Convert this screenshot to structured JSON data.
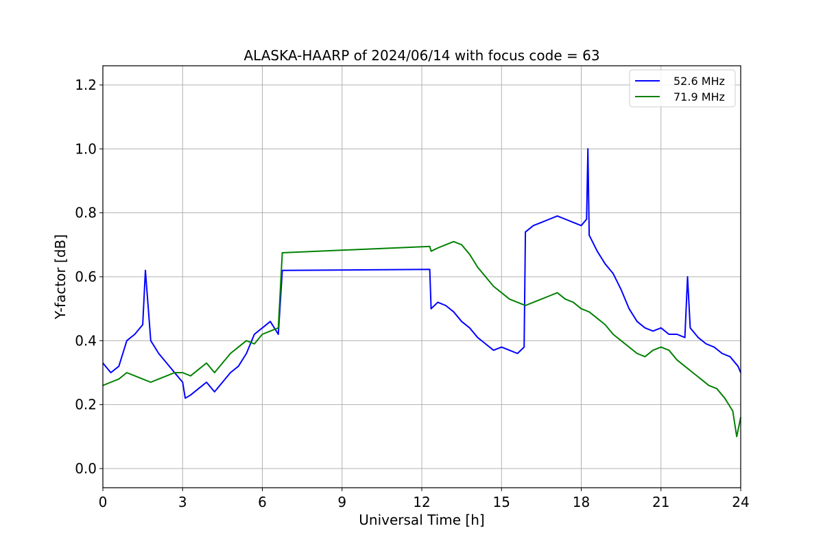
{
  "chart_data": {
    "type": "line",
    "title": "ALASKA-HAARP of 2024/06/14 with focus code = 63",
    "xlabel": "Universal Time [h]",
    "ylabel": "Y-factor [dB]",
    "xlim": [
      0,
      24
    ],
    "ylim": [
      -0.06,
      1.26
    ],
    "xticks": [
      0,
      3,
      6,
      9,
      12,
      15,
      18,
      21,
      24
    ],
    "xtick_labels": [
      "0",
      "3",
      "6",
      "9",
      "12",
      "15",
      "18",
      "21",
      "24"
    ],
    "yticks": [
      0.0,
      0.2,
      0.4,
      0.6,
      0.8,
      1.0,
      1.2
    ],
    "ytick_labels": [
      "0.0",
      "0.2",
      "0.4",
      "0.6",
      "0.8",
      "1.0",
      "1.2"
    ],
    "grid": true,
    "legend_position": "top-right",
    "series": [
      {
        "name": "52.6 MHz",
        "color": "#0000ff",
        "x": [
          0.0,
          0.3,
          0.6,
          0.9,
          1.2,
          1.5,
          1.6,
          1.8,
          2.1,
          2.4,
          2.7,
          3.0,
          3.1,
          3.3,
          3.6,
          3.9,
          4.2,
          4.5,
          4.8,
          5.1,
          5.4,
          5.7,
          6.0,
          6.3,
          6.6,
          6.75,
          12.3,
          12.35,
          12.6,
          12.9,
          13.2,
          13.5,
          13.8,
          14.1,
          14.4,
          14.7,
          15.0,
          15.3,
          15.6,
          15.85,
          15.9,
          16.2,
          16.5,
          16.8,
          17.1,
          17.4,
          17.7,
          18.0,
          18.2,
          18.25,
          18.3,
          18.6,
          18.9,
          19.2,
          19.5,
          19.8,
          20.1,
          20.4,
          20.7,
          21.0,
          21.3,
          21.6,
          21.9,
          22.0,
          22.1,
          22.4,
          22.7,
          23.0,
          23.3,
          23.6,
          23.9,
          24.0
        ],
        "y": [
          0.33,
          0.3,
          0.32,
          0.4,
          0.42,
          0.45,
          0.62,
          0.4,
          0.36,
          0.33,
          0.3,
          0.27,
          0.22,
          0.23,
          0.25,
          0.27,
          0.24,
          0.27,
          0.3,
          0.32,
          0.36,
          0.42,
          0.44,
          0.46,
          0.42,
          0.62,
          0.623,
          0.5,
          0.52,
          0.51,
          0.49,
          0.46,
          0.44,
          0.41,
          0.39,
          0.37,
          0.38,
          0.37,
          0.36,
          0.38,
          0.74,
          0.76,
          0.77,
          0.78,
          0.79,
          0.78,
          0.77,
          0.76,
          0.78,
          1.0,
          0.73,
          0.68,
          0.64,
          0.61,
          0.56,
          0.5,
          0.46,
          0.44,
          0.43,
          0.44,
          0.42,
          0.42,
          0.41,
          0.6,
          0.44,
          0.41,
          0.39,
          0.38,
          0.36,
          0.35,
          0.32,
          0.3
        ]
      },
      {
        "name": "71.9 MHz",
        "color": "#008000",
        "x": [
          0.0,
          0.3,
          0.6,
          0.9,
          1.2,
          1.5,
          1.8,
          2.1,
          2.4,
          2.7,
          3.0,
          3.3,
          3.6,
          3.9,
          4.2,
          4.5,
          4.8,
          5.1,
          5.4,
          5.7,
          6.0,
          6.3,
          6.6,
          6.75,
          12.3,
          12.35,
          12.6,
          12.9,
          13.2,
          13.5,
          13.8,
          14.1,
          14.4,
          14.7,
          15.0,
          15.3,
          15.6,
          15.9,
          16.2,
          16.5,
          16.8,
          17.1,
          17.4,
          17.7,
          18.0,
          18.3,
          18.6,
          18.9,
          19.2,
          19.5,
          19.8,
          20.1,
          20.4,
          20.7,
          21.0,
          21.3,
          21.6,
          21.9,
          22.2,
          22.5,
          22.8,
          23.1,
          23.4,
          23.7,
          23.85,
          24.0
        ],
        "y": [
          0.26,
          0.27,
          0.28,
          0.3,
          0.29,
          0.28,
          0.27,
          0.28,
          0.29,
          0.3,
          0.3,
          0.29,
          0.31,
          0.33,
          0.3,
          0.33,
          0.36,
          0.38,
          0.4,
          0.39,
          0.42,
          0.43,
          0.44,
          0.675,
          0.695,
          0.68,
          0.69,
          0.7,
          0.71,
          0.7,
          0.67,
          0.63,
          0.6,
          0.57,
          0.55,
          0.53,
          0.52,
          0.51,
          0.52,
          0.53,
          0.54,
          0.55,
          0.53,
          0.52,
          0.5,
          0.49,
          0.47,
          0.45,
          0.42,
          0.4,
          0.38,
          0.36,
          0.35,
          0.37,
          0.38,
          0.37,
          0.34,
          0.32,
          0.3,
          0.28,
          0.26,
          0.25,
          0.22,
          0.18,
          0.1,
          0.16
        ]
      }
    ]
  }
}
